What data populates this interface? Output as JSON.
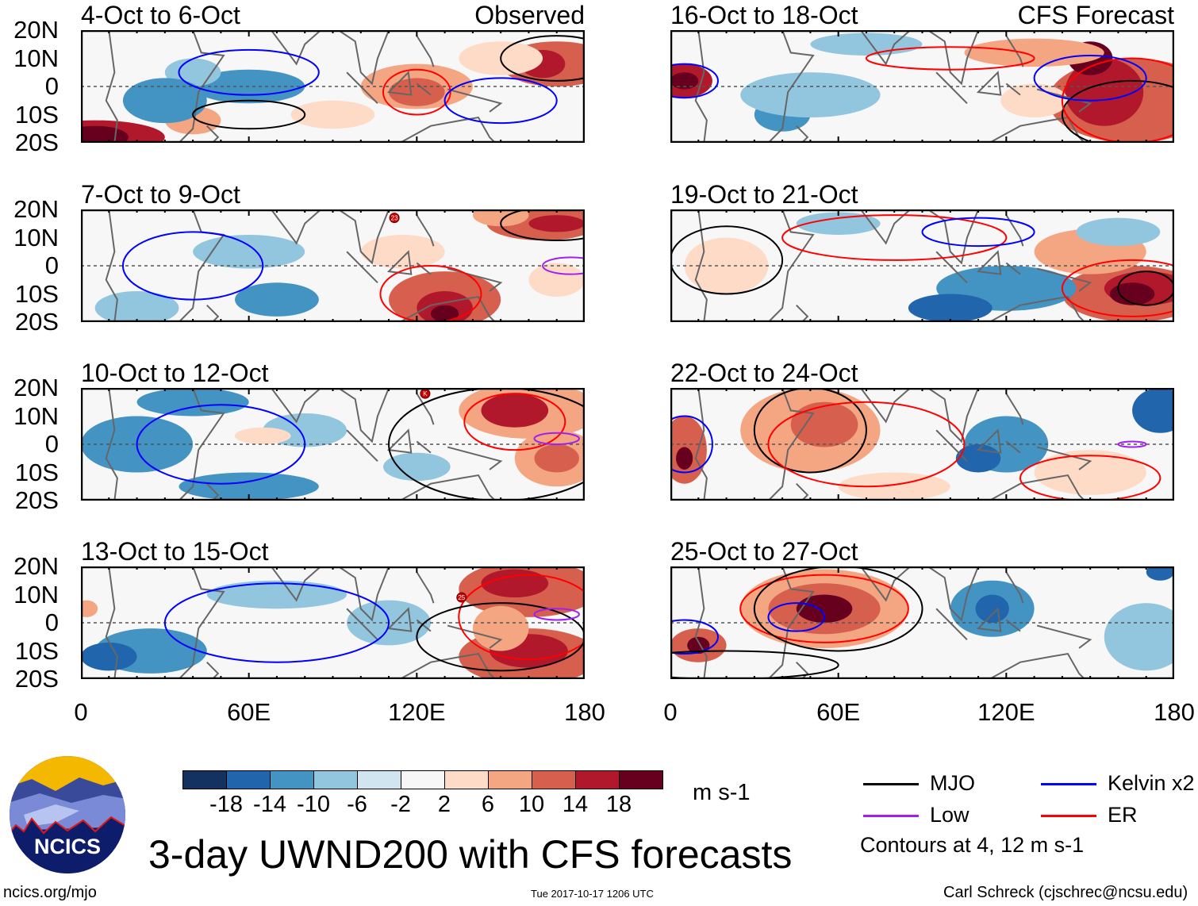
{
  "labels": {
    "observed": "Observed",
    "forecast": "CFS Forecast"
  },
  "panels": [
    {
      "title": "4-Oct to 6-Oct",
      "type": "observed"
    },
    {
      "title": "7-Oct to 9-Oct",
      "type": "observed"
    },
    {
      "title": "10-Oct to 12-Oct",
      "type": "observed"
    },
    {
      "title": "13-Oct to 15-Oct",
      "type": "observed"
    },
    {
      "title": "16-Oct to 18-Oct",
      "type": "forecast"
    },
    {
      "title": "19-Oct to 21-Oct",
      "type": "forecast"
    },
    {
      "title": "22-Oct to 24-Oct",
      "type": "forecast"
    },
    {
      "title": "25-Oct to 27-Oct",
      "type": "forecast"
    }
  ],
  "y_ticks": [
    "20N",
    "10N",
    "0",
    "10S",
    "20S"
  ],
  "x_ticks": [
    "0",
    "60E",
    "120E",
    "180"
  ],
  "storm_markers": [
    "23",
    "K",
    "25"
  ],
  "colorbar": {
    "colors": [
      "#14325f",
      "#2166ac",
      "#4393c3",
      "#92c5de",
      "#d1e5f0",
      "#f7f7f7",
      "#fddbc7",
      "#f4a582",
      "#d6604d",
      "#b2182b",
      "#67001f"
    ],
    "labels": [
      "-18",
      "-14",
      "-10",
      "-6",
      "-2",
      "2",
      "6",
      "10",
      "14",
      "18"
    ],
    "units": "m s-1"
  },
  "legend": {
    "items": [
      {
        "label": "MJO",
        "color": "#000000"
      },
      {
        "label": "Kelvin x2",
        "color": "#0000ff"
      },
      {
        "label": "Low",
        "color": "#a020f0"
      },
      {
        "label": "ER",
        "color": "#ff0000"
      }
    ],
    "note": "Contours at 4, 12 m s-1"
  },
  "title": "3-day UWND200 with CFS forecasts",
  "logo_text": "NCICS",
  "footer": {
    "url": "ncics.org/mjo",
    "timestamp": "Tue 2017-10-17 1206 UTC",
    "author": "Carl Schreck (cjschrec@ncsu.edu)"
  }
}
